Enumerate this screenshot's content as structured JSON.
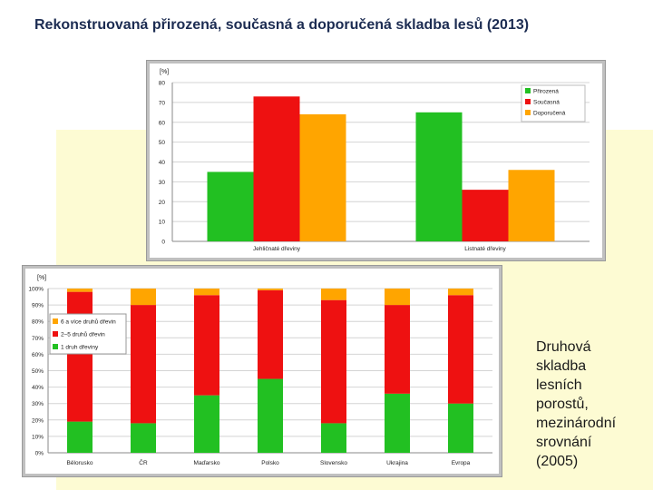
{
  "title": "Rekonstruovaná přirozená, současná a doporučená skladba lesů (2013)",
  "caption_lines": [
    "Druhová",
    "skladba",
    "lesních",
    "porostů,",
    "mezinárodní",
    "srovnání",
    "(2005)"
  ],
  "chart_data": [
    {
      "type": "bar",
      "ylabel": "[%]",
      "ylim": [
        0,
        80
      ],
      "yticks": [
        0,
        10,
        20,
        30,
        40,
        50,
        60,
        70,
        80
      ],
      "grid": true,
      "legend": "top-right",
      "categories": [
        "Jehličnaté dřeviny",
        "Listnaté dřeviny"
      ],
      "series": [
        {
          "name": "Přirozená",
          "values": [
            35,
            65
          ],
          "color": "#22c022"
        },
        {
          "name": "Současná",
          "values": [
            73,
            26
          ],
          "color": "#ee1111"
        },
        {
          "name": "Doporučená",
          "values": [
            64,
            36
          ],
          "color": "#ffa500"
        }
      ]
    },
    {
      "type": "bar",
      "stacked": true,
      "ylabel": "[%]",
      "ylim": [
        0,
        100
      ],
      "yticks": [
        "0%",
        "10%",
        "20%",
        "30%",
        "40%",
        "50%",
        "60%",
        "70%",
        "80%",
        "90%",
        "100%"
      ],
      "grid": true,
      "legend": "top-left",
      "categories": [
        "Bělorusko",
        "ČR",
        "Maďarsko",
        "Polsko",
        "Slovensko",
        "Ukrajina",
        "Evropa"
      ],
      "series": [
        {
          "name": "1 druh dřeviny",
          "values": [
            19,
            18,
            35,
            45,
            18,
            36,
            30
          ],
          "color": "#22c022"
        },
        {
          "name": "2–5 druhů dřevin",
          "values": [
            79,
            72,
            61,
            54,
            75,
            54,
            66
          ],
          "color": "#ee1111"
        },
        {
          "name": "6 a více druhů dřevin",
          "values": [
            2,
            10,
            4,
            1,
            7,
            10,
            4
          ],
          "color": "#ffa500"
        }
      ]
    }
  ]
}
